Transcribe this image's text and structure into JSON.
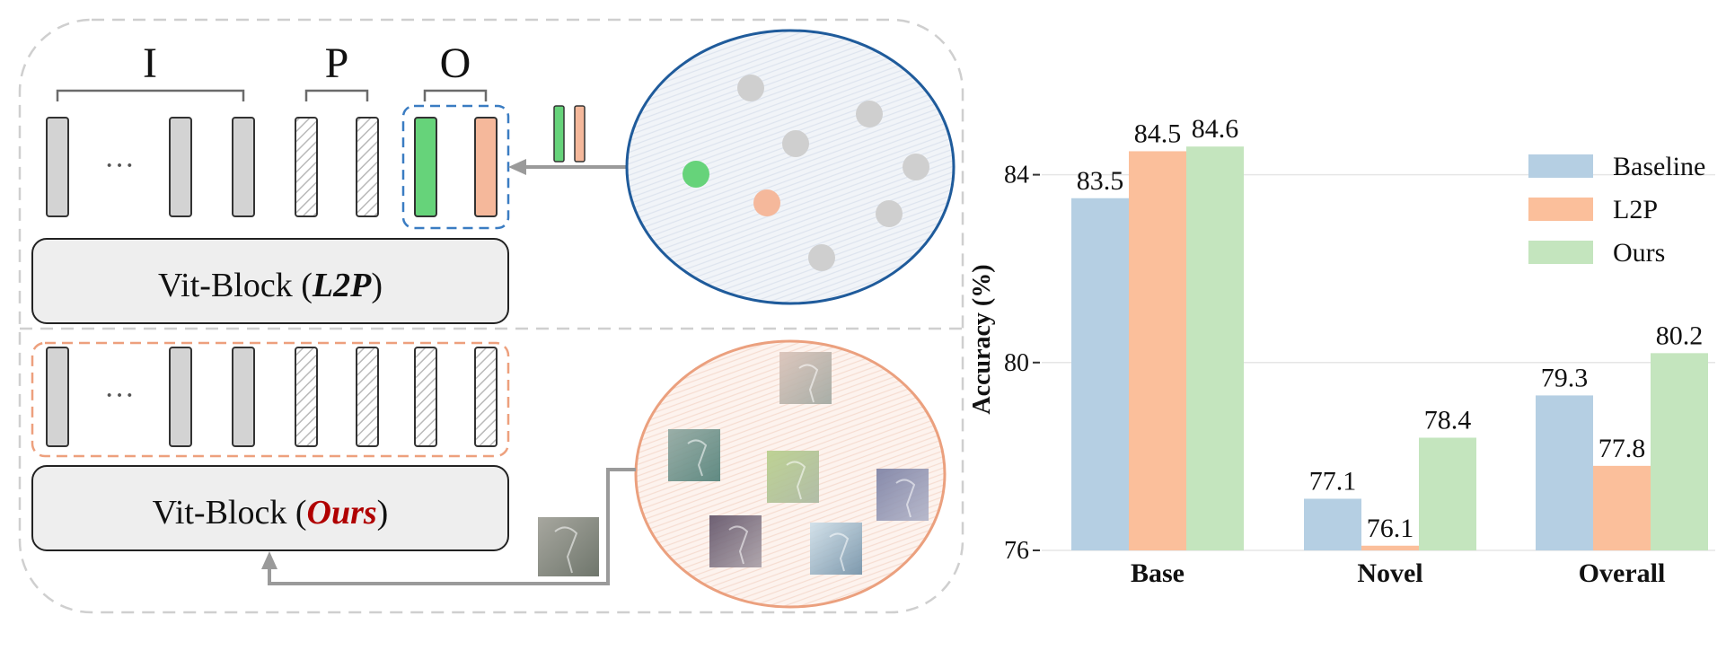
{
  "diagram": {
    "group_labels": [
      "I",
      "P",
      "O"
    ],
    "ellipsis": "···",
    "block_top": {
      "prefix": "Vit-Block (",
      "method": "L2P",
      "suffix": ")"
    },
    "block_bottom": {
      "prefix": "Vit-Block (",
      "method": "Ours",
      "suffix": ")"
    },
    "colors": {
      "token_gray": "#d3d3d3",
      "prompt_green": "#66d37a",
      "prompt_orange": "#f5b89b",
      "top_ellipse": "#1f5b9b",
      "bottom_ellipse": "#eba07e",
      "dash_blue": "#3a7cc2",
      "dash_orange": "#eda07d",
      "ours_red": "#b00000"
    }
  },
  "chart_data": {
    "type": "bar",
    "categories": [
      "Base",
      "Novel",
      "Overall"
    ],
    "series": [
      {
        "name": "Baseline",
        "values": [
          83.5,
          77.1,
          79.3
        ],
        "color": "#b5cfe3"
      },
      {
        "name": "L2P",
        "values": [
          84.5,
          76.1,
          77.8
        ],
        "color": "#fbbf9b"
      },
      {
        "name": "Ours",
        "values": [
          84.6,
          78.4,
          80.2
        ],
        "color": "#c4e5be"
      }
    ],
    "ylabel": "Accuracy (%)",
    "yticks": [
      76,
      80,
      84
    ],
    "ylim": [
      76,
      85.5
    ],
    "grid": true,
    "legend": "top-right"
  }
}
